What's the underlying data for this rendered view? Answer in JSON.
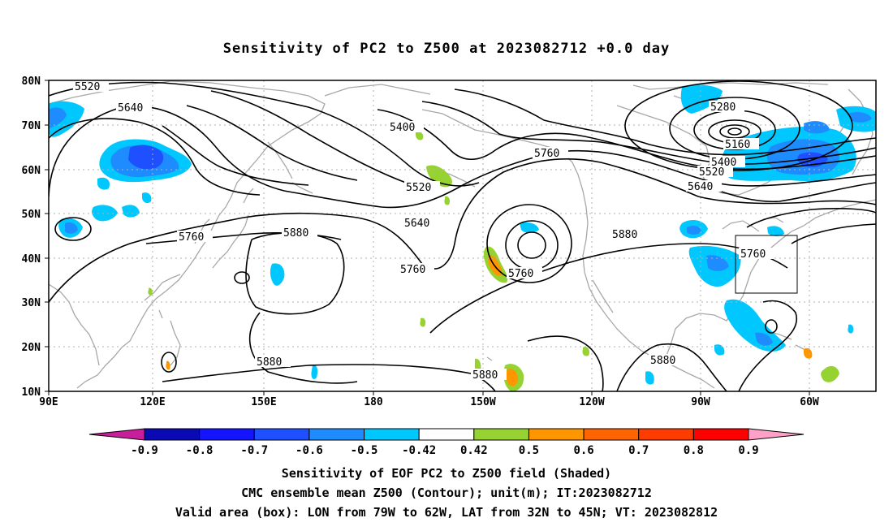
{
  "title": "Sensitivity of PC2 to Z500 at 2023082712 +0.0 day",
  "lat_labels": [
    "80N",
    "70N",
    "60N",
    "50N",
    "40N",
    "30N",
    "20N",
    "10N"
  ],
  "lon_labels": [
    "90E",
    "120E",
    "150E",
    "180",
    "150W",
    "120W",
    "90W",
    "60W"
  ],
  "contour_labels": [
    {
      "text": "5520"
    },
    {
      "text": "5640"
    },
    {
      "text": "5400"
    },
    {
      "text": "5520"
    },
    {
      "text": "5640"
    },
    {
      "text": "5760"
    },
    {
      "text": "5760"
    },
    {
      "text": "5880"
    },
    {
      "text": "5760"
    },
    {
      "text": "5760"
    },
    {
      "text": "5880"
    },
    {
      "text": "5880"
    },
    {
      "text": "5880"
    },
    {
      "text": "5880"
    },
    {
      "text": "5280"
    },
    {
      "text": "5160"
    },
    {
      "text": "5400"
    },
    {
      "text": "5520"
    },
    {
      "text": "5640"
    },
    {
      "text": "5760"
    }
  ],
  "colorbar": {
    "labels": [
      "-0.9",
      "-0.8",
      "-0.7",
      "-0.6",
      "-0.5",
      "-0.42",
      "0.42",
      "0.5",
      "0.6",
      "0.7",
      "0.8",
      "0.9"
    ],
    "colors": [
      "#0a0ab4",
      "#1414ff",
      "#1e50ff",
      "#1e8cff",
      "#00c8ff",
      "#ffffff",
      "#96d232",
      "#ff9600",
      "#ff6400",
      "#ff3c00",
      "#ff0000"
    ],
    "low_extend_color": "#c81e9b",
    "high_extend_color": "#ffa0c8"
  },
  "footer": {
    "line1": "Sensitivity of EOF PC2 to Z500 field (Shaded)",
    "line2": "CMC ensemble mean Z500 (Contour); unit(m); IT:2023082712",
    "line3": "Valid area (box): LON from 79W to 62W, LAT from 32N to 45N; VT: 2023082812"
  }
}
